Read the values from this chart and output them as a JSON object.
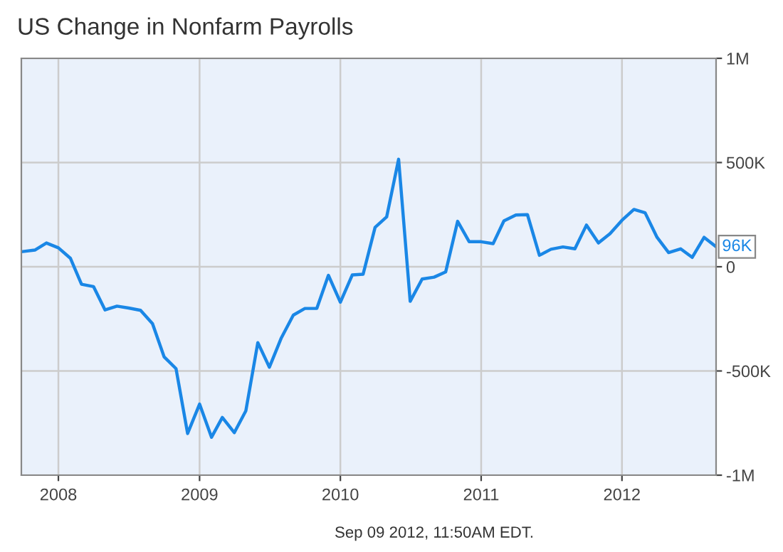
{
  "chart_data": {
    "type": "line",
    "title": "US Change in Nonfarm Payrolls",
    "x": [
      "2007-10-01",
      "2007-11-01",
      "2007-12-01",
      "2008-01-01",
      "2008-02-01",
      "2008-03-01",
      "2008-04-01",
      "2008-05-01",
      "2008-06-01",
      "2008-07-01",
      "2008-08-01",
      "2008-09-01",
      "2008-10-01",
      "2008-11-01",
      "2008-12-01",
      "2009-01-01",
      "2009-02-01",
      "2009-03-01",
      "2009-04-01",
      "2009-05-01",
      "2009-06-01",
      "2009-07-01",
      "2009-08-01",
      "2009-09-01",
      "2009-10-01",
      "2009-11-01",
      "2009-12-01",
      "2010-01-01",
      "2010-02-01",
      "2010-03-01",
      "2010-04-01",
      "2010-05-01",
      "2010-06-01",
      "2010-07-01",
      "2010-08-01",
      "2010-09-01",
      "2010-10-01",
      "2010-11-01",
      "2010-12-01",
      "2011-01-01",
      "2011-02-01",
      "2011-03-01",
      "2011-04-01",
      "2011-05-01",
      "2011-06-01",
      "2011-07-01",
      "2011-08-01",
      "2011-09-01",
      "2011-10-01",
      "2011-11-01",
      "2011-12-01",
      "2012-01-01",
      "2012-02-01",
      "2012-03-01",
      "2012-04-01",
      "2012-05-01",
      "2012-06-01",
      "2012-07-01",
      "2012-08-01",
      "2012-09-01"
    ],
    "series": [
      {
        "color": "#1a87e6",
        "values": [
          73000,
          80000,
          114000,
          91000,
          41000,
          -84000,
          -95000,
          -207000,
          -189000,
          -198000,
          -209000,
          -273000,
          -432000,
          -489000,
          -800000,
          -659000,
          -818000,
          -723000,
          -796000,
          -691000,
          -364000,
          -482000,
          -341000,
          -232000,
          -200000,
          -200000,
          -41000,
          -170000,
          -39000,
          -36000,
          189000,
          239000,
          516000,
          -166000,
          -59000,
          -50000,
          -25000,
          218000,
          120000,
          120000,
          111000,
          220000,
          248000,
          250000,
          55000,
          84000,
          95000,
          86000,
          200000,
          114000,
          159000,
          223000,
          275000,
          259000,
          141000,
          68000,
          86000,
          45000,
          141000,
          96000
        ]
      }
    ],
    "xlim": [
      "2007-09-27",
      "2012-09-01"
    ],
    "xticks": [
      {
        "value": "2008-01-01",
        "label": "2008"
      },
      {
        "value": "2009-01-01",
        "label": "2009"
      },
      {
        "value": "2010-01-01",
        "label": "2010"
      },
      {
        "value": "2011-01-01",
        "label": "2011"
      },
      {
        "value": "2012-01-01",
        "label": "2012"
      }
    ],
    "ylim": [
      -1000000,
      1000000
    ],
    "yticks": [
      {
        "value": -1000000,
        "label": "-1M"
      },
      {
        "value": -500000,
        "label": "-500K"
      },
      {
        "value": 0,
        "label": "0"
      },
      {
        "value": 500000,
        "label": "500K"
      },
      {
        "value": 1000000,
        "label": "1M"
      }
    ],
    "grid": true,
    "marker": "none",
    "line_style": "solid",
    "annotations": [
      {
        "text": "96K",
        "x": "2012-09-01",
        "y": 96000
      },
      "Sep 09 2012, 11:50AM EDT."
    ]
  }
}
